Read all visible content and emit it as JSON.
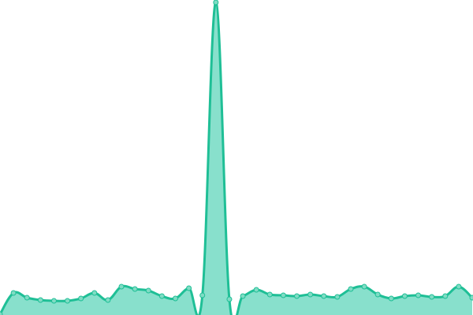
{
  "chart_data": {
    "type": "area",
    "title": "",
    "xlabel": "",
    "ylabel": "",
    "grid": false,
    "legend": "none",
    "ylim": [
      0,
      400
    ],
    "x": [
      0,
      1,
      2,
      3,
      4,
      5,
      6,
      7,
      8,
      9,
      10,
      11,
      12,
      13,
      14,
      15,
      16,
      17,
      18,
      19,
      20,
      21,
      22,
      23,
      24,
      25,
      26,
      27,
      28,
      29,
      30,
      31,
      32,
      33,
      34,
      35
    ],
    "series": [
      {
        "values": [
          1,
          28,
          22,
          19,
          18,
          18,
          21,
          28,
          19,
          36,
          33,
          31,
          24,
          21,
          34,
          25,
          397,
          20,
          24,
          32,
          26,
          25,
          24,
          26,
          24,
          23,
          33,
          36,
          26,
          21,
          24,
          25,
          23,
          24,
          36,
          22
        ],
        "line_color": "#1fbf96",
        "fill_color": "#88e0cc",
        "marker_color": "#7fdcc4"
      }
    ]
  }
}
